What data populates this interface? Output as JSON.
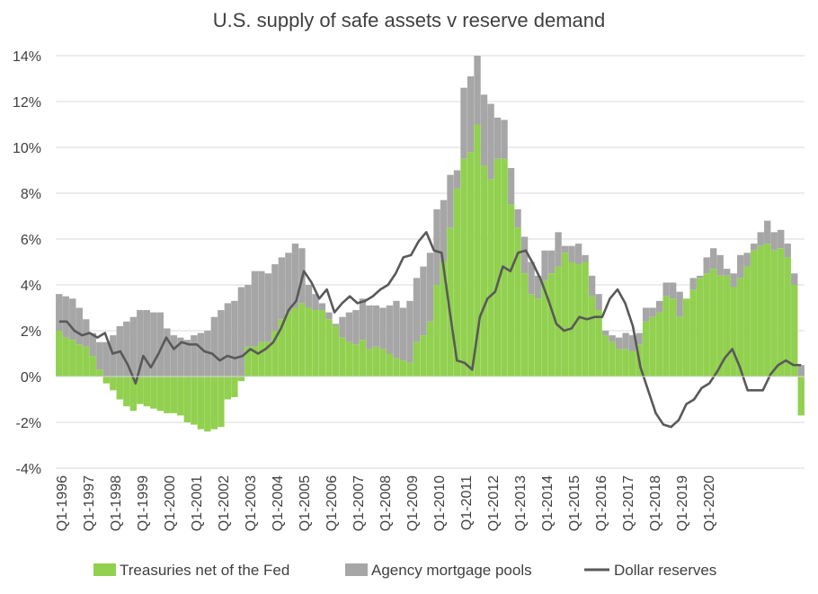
{
  "chart_data": {
    "type": "bar",
    "title": "U.S. supply of safe assets v reserve demand",
    "xlabel": "",
    "ylabel": "",
    "ylim": [
      -4,
      14
    ],
    "yticks": [
      -4,
      -2,
      0,
      2,
      4,
      6,
      8,
      10,
      12,
      14
    ],
    "ytick_labels": [
      "-4%",
      "-2%",
      "0%",
      "2%",
      "4%",
      "6%",
      "8%",
      "10%",
      "12%",
      "14%"
    ],
    "grid": "horizontal",
    "legend_position": "bottom",
    "stacked": true,
    "x_start": "Q1-1996",
    "xtick_labels": [
      "Q1-1996",
      "Q1-1997",
      "Q1-1998",
      "Q1-1999",
      "Q1-2000",
      "Q1-2001",
      "Q1-2002",
      "Q1-2003",
      "Q1-2004",
      "Q1-2005",
      "Q1-2006",
      "Q1-2007",
      "Q1-2008",
      "Q1-2009",
      "Q1-2010",
      "Q1-2011",
      "Q1-2012",
      "Q1-2013",
      "Q1-2014",
      "Q1-2015",
      "Q1-2016",
      "Q1-2017",
      "Q1-2018",
      "Q1-2019",
      "Q1-2020"
    ],
    "series": [
      {
        "name": "Treasuries net of the Fed",
        "kind": "bar",
        "color": "#92d050",
        "values": [
          2.0,
          1.7,
          1.6,
          1.4,
          1.3,
          0.9,
          0.3,
          -0.3,
          -0.6,
          -1.0,
          -1.3,
          -1.5,
          -1.2,
          -1.3,
          -1.4,
          -1.5,
          -1.6,
          -1.6,
          -1.7,
          -2.0,
          -2.1,
          -2.3,
          -2.4,
          -2.3,
          -2.2,
          -1.0,
          -0.9,
          -0.2,
          1.3,
          1.3,
          1.5,
          1.5,
          2.0,
          2.5,
          2.8,
          3.0,
          3.2,
          3.0,
          2.9,
          2.9,
          2.5,
          2.2,
          1.7,
          1.5,
          1.4,
          1.6,
          1.2,
          1.3,
          1.2,
          1.0,
          0.8,
          0.7,
          0.6,
          1.5,
          1.8,
          2.4,
          4.0,
          5.0,
          6.5,
          8.2,
          9.5,
          9.8,
          11.0,
          9.2,
          8.6,
          9.5,
          9.5,
          7.5,
          6.5,
          4.5,
          3.6,
          3.4,
          4.2,
          4.5,
          4.8,
          5.4,
          5.0,
          4.9,
          5.0,
          3.5,
          2.9,
          1.8,
          1.5,
          1.2,
          1.2,
          1.1,
          1.4,
          2.4,
          2.6,
          2.8,
          3.5,
          3.4,
          2.6,
          3.4,
          3.8,
          4.3,
          4.5,
          4.7,
          4.4,
          4.4,
          3.9,
          4.3,
          4.8,
          5.5,
          5.7,
          5.8,
          5.5,
          5.6,
          5.2,
          4.0,
          -1.7
        ],
        "total_values": [
          3.6,
          3.5,
          3.4,
          3.0,
          2.5,
          1.9,
          1.5,
          1.5,
          1.8,
          2.2,
          2.4,
          2.6,
          2.9,
          2.9,
          2.8,
          2.8,
          2.1,
          1.8,
          1.7,
          1.6,
          1.8,
          1.9,
          2.0,
          2.6,
          2.9,
          3.2,
          3.3,
          3.9,
          4.0,
          4.6,
          4.6,
          4.5,
          4.9,
          5.2,
          5.4,
          5.8,
          5.6,
          4.0,
          3.6,
          3.2,
          2.8,
          2.3,
          2.6,
          2.8,
          2.9,
          3.4,
          3.1,
          3.1,
          3.0,
          3.1,
          3.3,
          3.0,
          3.3,
          4.3,
          4.8,
          5.4,
          7.3,
          7.7,
          8.8,
          9.0,
          12.6,
          13.1,
          14.0,
          12.3,
          11.9,
          11.3,
          11.2,
          9.1,
          7.3,
          6.1,
          5.0,
          4.4,
          5.5,
          5.5,
          6.3,
          5.7,
          5.7,
          5.8,
          5.3,
          4.4,
          3.6,
          2.0,
          1.8,
          1.7,
          1.9,
          1.8,
          1.9,
          3.0,
          3.0,
          3.3,
          4.1,
          4.1,
          3.7,
          3.4,
          4.3,
          4.4,
          5.2,
          5.6,
          5.3,
          4.7,
          4.5,
          5.3,
          5.4,
          5.8,
          6.3,
          6.8,
          6.3,
          6.4,
          5.8,
          4.5,
          0.5
        ]
      },
      {
        "name": "Agency mortgage pools",
        "kind": "bar",
        "color": "#a6a6a6"
      },
      {
        "name": "Dollar reserves",
        "kind": "line",
        "color": "#595959",
        "values": [
          2.4,
          2.4,
          2.0,
          1.8,
          1.9,
          1.7,
          1.9,
          1.0,
          1.1,
          0.5,
          -0.3,
          0.9,
          0.4,
          1.0,
          1.7,
          1.2,
          1.5,
          1.4,
          1.4,
          1.1,
          1.0,
          0.7,
          0.9,
          0.8,
          0.9,
          1.2,
          1.0,
          1.2,
          1.5,
          2.1,
          2.9,
          3.3,
          4.6,
          4.1,
          3.4,
          3.8,
          2.8,
          3.2,
          3.5,
          3.2,
          3.3,
          3.5,
          3.8,
          4.0,
          4.5,
          5.2,
          5.3,
          5.9,
          6.3,
          5.5,
          5.4,
          3.0,
          0.7,
          0.6,
          0.3,
          2.6,
          3.4,
          3.7,
          4.8,
          4.6,
          5.4,
          5.5,
          4.9,
          4.2,
          3.3,
          2.3,
          2.0,
          2.1,
          2.6,
          2.5,
          2.6,
          2.6,
          3.4,
          3.8,
          3.2,
          2.2,
          0.4,
          -0.6,
          -1.6,
          -2.1,
          -2.2,
          -1.9,
          -1.2,
          -1.0,
          -0.5,
          -0.3,
          0.2,
          0.8,
          1.2,
          0.4,
          -0.6,
          -0.6,
          -0.6,
          0.1,
          0.5,
          0.7,
          0.5,
          0.5
        ]
      }
    ]
  }
}
